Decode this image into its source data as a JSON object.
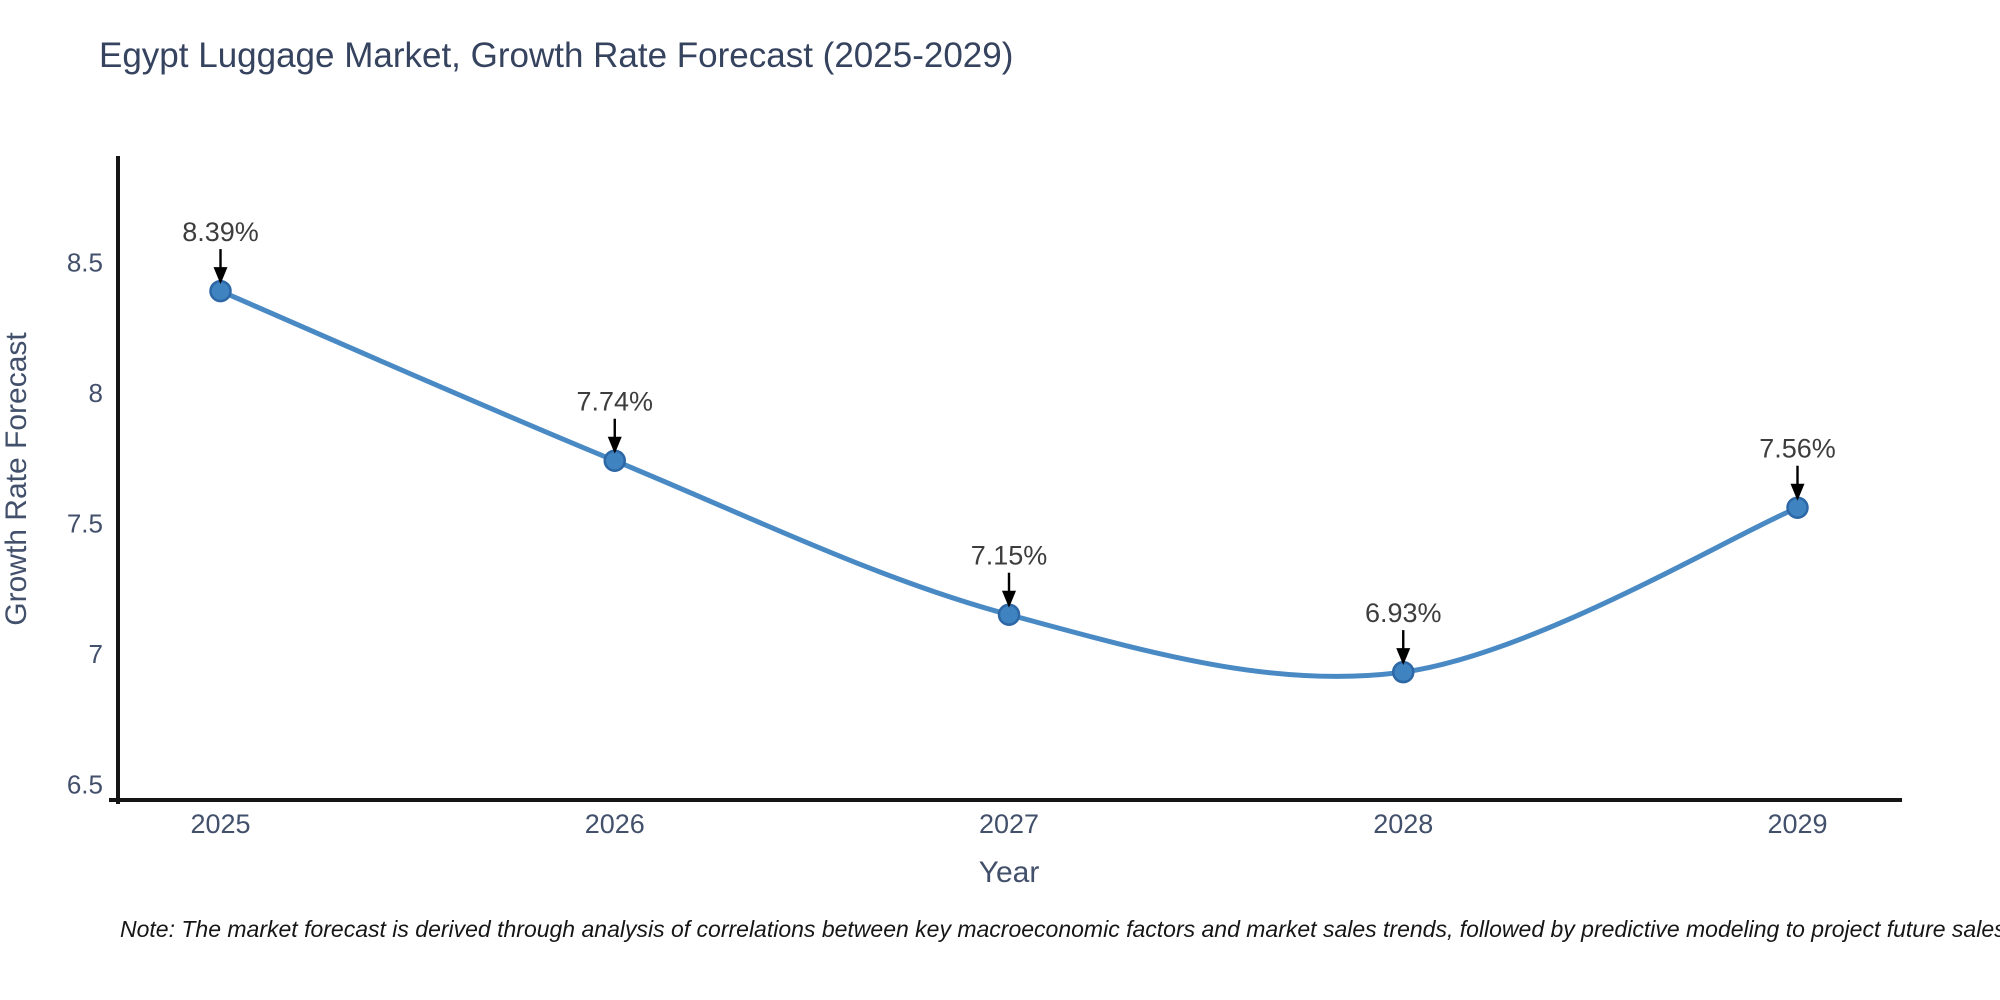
{
  "title": "Egypt Luggage Market, Growth Rate Forecast (2025-2029)",
  "note": "Note: The market forecast is derived through analysis of correlations between key macroeconomic factors and market sales trends, followed by predictive modeling to project future sales",
  "chart_data": {
    "type": "line",
    "title": "Egypt Luggage Market, Growth Rate Forecast (2025-2029)",
    "x": [
      2025,
      2026,
      2027,
      2028,
      2029
    ],
    "values": [
      8.39,
      7.74,
      7.15,
      6.93,
      7.56
    ],
    "point_labels": [
      "8.39%",
      "7.74%",
      "7.15%",
      "6.93%",
      "7.56%"
    ],
    "x_tick_labels": [
      "2025",
      "2026",
      "2027",
      "2028",
      "2029"
    ],
    "y_ticks": [
      6.5,
      7,
      7.5,
      8,
      8.5
    ],
    "y_tick_labels": [
      "6.5",
      "7",
      "7.5",
      "8",
      "8.5"
    ],
    "xlabel": "Year",
    "ylabel": "Growth Rate Forecast",
    "xlim": [
      2024.74,
      2029.26
    ],
    "ylim": [
      6.44,
      8.9
    ],
    "curve": "spline",
    "grid": false,
    "legend": false,
    "annotations": "value labels with down arrows above each point",
    "colors": {
      "line": "#4a8ac4",
      "marker_fill": "#3f83c0",
      "marker_edge": "#2d67a5",
      "axis_line": "#151515",
      "tick_label": "#42506b",
      "axis_title": "#42506b",
      "annotation_text": "#3d3d3d",
      "annotation_arrow": "#000000",
      "title_text": "#36435f",
      "note_text": "#161616",
      "background": "#ffffff"
    }
  }
}
